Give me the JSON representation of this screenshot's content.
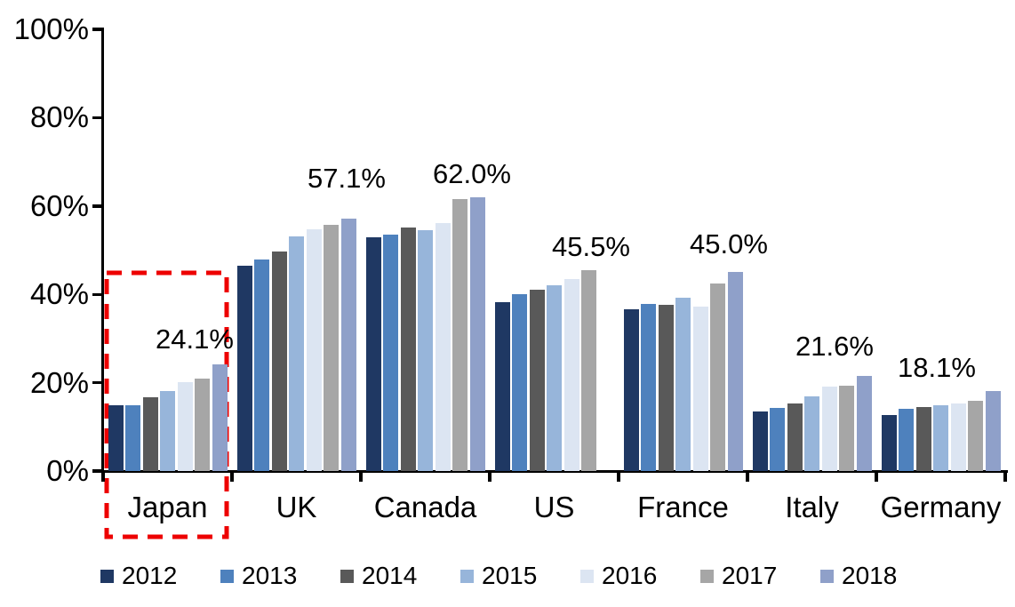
{
  "chart_data": {
    "type": "bar",
    "title": "",
    "categories": [
      "Japan",
      "UK",
      "Canada",
      "US",
      "France",
      "Italy",
      "Germany"
    ],
    "series": [
      {
        "name": "2012",
        "color": "#1F3863",
        "values": [
          14.8,
          46.4,
          53.0,
          38.2,
          36.6,
          13.5,
          12.7
        ]
      },
      {
        "name": "2013",
        "color": "#4E81BD",
        "values": [
          15.0,
          47.8,
          53.5,
          40.0,
          37.8,
          14.3,
          14.1
        ]
      },
      {
        "name": "2014",
        "color": "#595959",
        "values": [
          16.7,
          49.8,
          55.1,
          41.0,
          37.6,
          15.4,
          14.4
        ]
      },
      {
        "name": "2015",
        "color": "#97B5DA",
        "values": [
          18.2,
          53.2,
          54.6,
          42.1,
          39.3,
          17.0,
          14.8
        ]
      },
      {
        "name": "2016",
        "color": "#DCE5F2",
        "values": [
          20.1,
          54.7,
          56.2,
          43.4,
          37.3,
          19.1,
          15.4
        ]
      },
      {
        "name": "2017",
        "color": "#A6A6A6",
        "values": [
          21.0,
          55.7,
          61.6,
          45.5,
          42.4,
          19.3,
          16.0
        ]
      },
      {
        "name": "2018",
        "color": "#8FA0C9",
        "values": [
          24.1,
          57.1,
          62.0,
          null,
          45.0,
          21.6,
          18.1
        ]
      }
    ],
    "data_labels": [
      "24.1%",
      "57.1%",
      "62.0%",
      "45.5%",
      "45.0%",
      "21.6%",
      "18.1%"
    ],
    "ytick_labels": [
      "0%",
      "20%",
      "40%",
      "60%",
      "80%",
      "100%"
    ],
    "ylim": [
      0,
      100
    ],
    "grid": false,
    "legend_position": "bottom",
    "annotation": {
      "type": "dashed-box",
      "target_category": "Japan",
      "color": "#ED0000"
    }
  }
}
